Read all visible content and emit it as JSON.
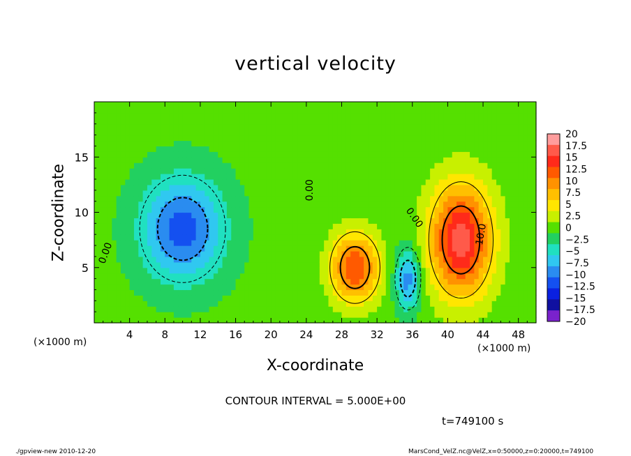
{
  "chart_data": {
    "type": "heatmap",
    "title": "vertical velocity",
    "xlabel": "X-coordinate",
    "ylabel": "Z-coordinate",
    "x_unit_label": "(×1000 m)",
    "xlim": [
      0,
      50
    ],
    "ylim": [
      0,
      20
    ],
    "x_ticks": [
      4,
      8,
      12,
      16,
      20,
      24,
      28,
      32,
      36,
      40,
      44,
      48
    ],
    "y_ticks": [
      5,
      10,
      15
    ],
    "colorbar": {
      "levels": [
        20,
        17.5,
        15,
        12.5,
        10,
        7.5,
        5,
        2.5,
        0,
        -2.5,
        -5,
        -7.5,
        -10,
        -12.5,
        -15,
        -17.5,
        -20
      ],
      "labels": [
        "20",
        "17.5",
        "15",
        "12.5",
        "10",
        "7.5",
        "5",
        "2.5",
        "0",
        "−2.5",
        "−5",
        "−7.5",
        "−10",
        "−12.5",
        "−15",
        "−17.5",
        "−20"
      ],
      "colors": [
        "#ff9d9d",
        "#ff5a4a",
        "#ff2a1a",
        "#ff5a00",
        "#ff9200",
        "#ffc000",
        "#ffe600",
        "#c8f000",
        "#55e000",
        "#22d060",
        "#20e0c0",
        "#30c8f0",
        "#2a8cf0",
        "#1450f0",
        "#0a20e0",
        "#1010a0",
        "#7a22cc"
      ]
    },
    "regions": [
      {
        "name": "downdraft-west",
        "x": 10,
        "z": 8.5,
        "rx": 6,
        "rz": 6,
        "peak": -12
      },
      {
        "name": "updraft-center",
        "x": 29.5,
        "z": 5,
        "rx": 3.5,
        "rz": 4,
        "peak": 14
      },
      {
        "name": "downdraft-narrow",
        "x": 35.5,
        "z": 4,
        "rx": 1.8,
        "rz": 3.5,
        "peak": -10
      },
      {
        "name": "updraft-east",
        "x": 41.5,
        "z": 7.5,
        "rx": 4.5,
        "rz": 6.5,
        "peak": 18
      }
    ],
    "contour_labels": [
      {
        "text": "0.00",
        "x": 1.3,
        "z": 6.3,
        "angle": -70
      },
      {
        "text": "0.00",
        "x": 24.4,
        "z": 12,
        "angle": -90
      },
      {
        "text": "0.00",
        "x": 36.2,
        "z": 9.5,
        "angle": 55
      },
      {
        "text": "10.0",
        "x": 43.8,
        "z": 8,
        "angle": -80
      }
    ],
    "contour_interval_text": "CONTOUR INTERVAL = 5.000E+00",
    "time_text": "t=749100 s"
  },
  "footer": {
    "left": "./gpview-new 2010-12-20",
    "right": "MarsCond_VelZ.nc@VelZ,x=0:50000,z=0:20000,t=749100"
  }
}
